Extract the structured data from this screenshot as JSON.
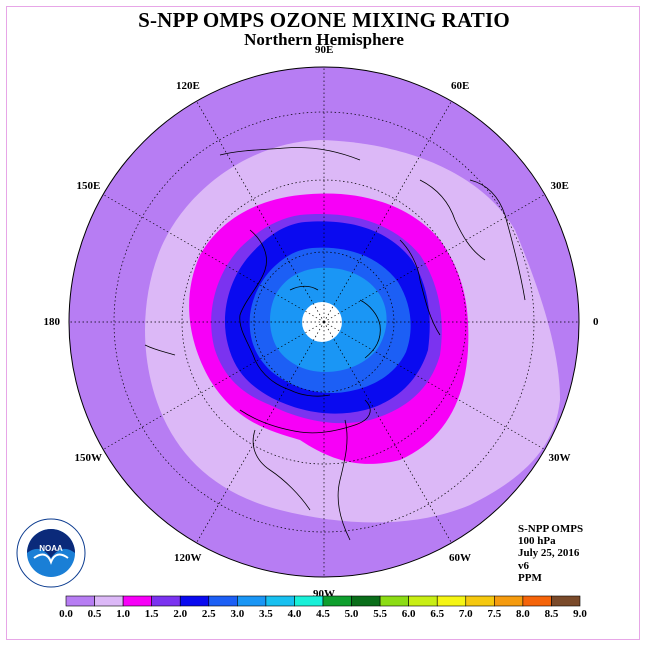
{
  "header": {
    "title": "S-NPP OMPS OZONE MIXING RATIO",
    "subtitle": "Northern Hemisphere"
  },
  "longitude_labels": [
    {
      "text": "90E",
      "angle": 90
    },
    {
      "text": "60E",
      "angle": 60
    },
    {
      "text": "30E",
      "angle": 30
    },
    {
      "text": "0",
      "angle": 0
    },
    {
      "text": "30W",
      "angle": -30
    },
    {
      "text": "60W",
      "angle": -60
    },
    {
      "text": "90W",
      "angle": -90
    },
    {
      "text": "120W",
      "angle": -120
    },
    {
      "text": "150W",
      "angle": -150
    },
    {
      "text": "180",
      "angle": 180
    },
    {
      "text": "150E",
      "angle": 150
    },
    {
      "text": "120E",
      "angle": 120
    }
  ],
  "info": {
    "instrument": "S-NPP OMPS",
    "level": "100 hPa",
    "date": "July 25, 2016",
    "version": "v6",
    "units": "PPM"
  },
  "logo": {
    "text": "NOAA",
    "ring_text": "NATIONAL OCEANIC AND ATMOSPHERIC ADMINISTRATION",
    "ring_text_bottom": "U.S. DEPARTMENT OF COMMERCE"
  },
  "colorbar": {
    "ticks": [
      "0.0",
      "0.5",
      "1.0",
      "1.5",
      "2.0",
      "2.5",
      "3.0",
      "3.5",
      "4.0",
      "4.5",
      "5.0",
      "5.5",
      "6.0",
      "6.5",
      "7.0",
      "7.5",
      "8.0",
      "8.5",
      "9.0"
    ],
    "colors": [
      "#b77df3",
      "#dcb8f7",
      "#f700f7",
      "#7b33f0",
      "#0a0af0",
      "#1c5ff5",
      "#1a96f5",
      "#18c0f0",
      "#19f0d8",
      "#0f9f2e",
      "#0a6e1a",
      "#8cdc14",
      "#c8ee14",
      "#f5f514",
      "#f5c80f",
      "#f59b0f",
      "#f5640a",
      "#f50a0a",
      "#7a4a2a"
    ]
  },
  "map_data": {
    "projection": "north-polar-stereographic",
    "contour_levels_ppm": [
      0.5,
      1.0,
      1.5,
      2.0,
      2.5,
      3.0
    ],
    "region_colors": {
      "outer": "#b77df3",
      "band_0_5": "#dcb8f7",
      "band_1_0": "#f700f7",
      "band_1_5": "#7b33f0",
      "band_2_0": "#0a0af0",
      "band_2_5": "#1c5ff5",
      "band_3_0": "#1a96f5",
      "pole_missing": "#ffffff"
    }
  }
}
